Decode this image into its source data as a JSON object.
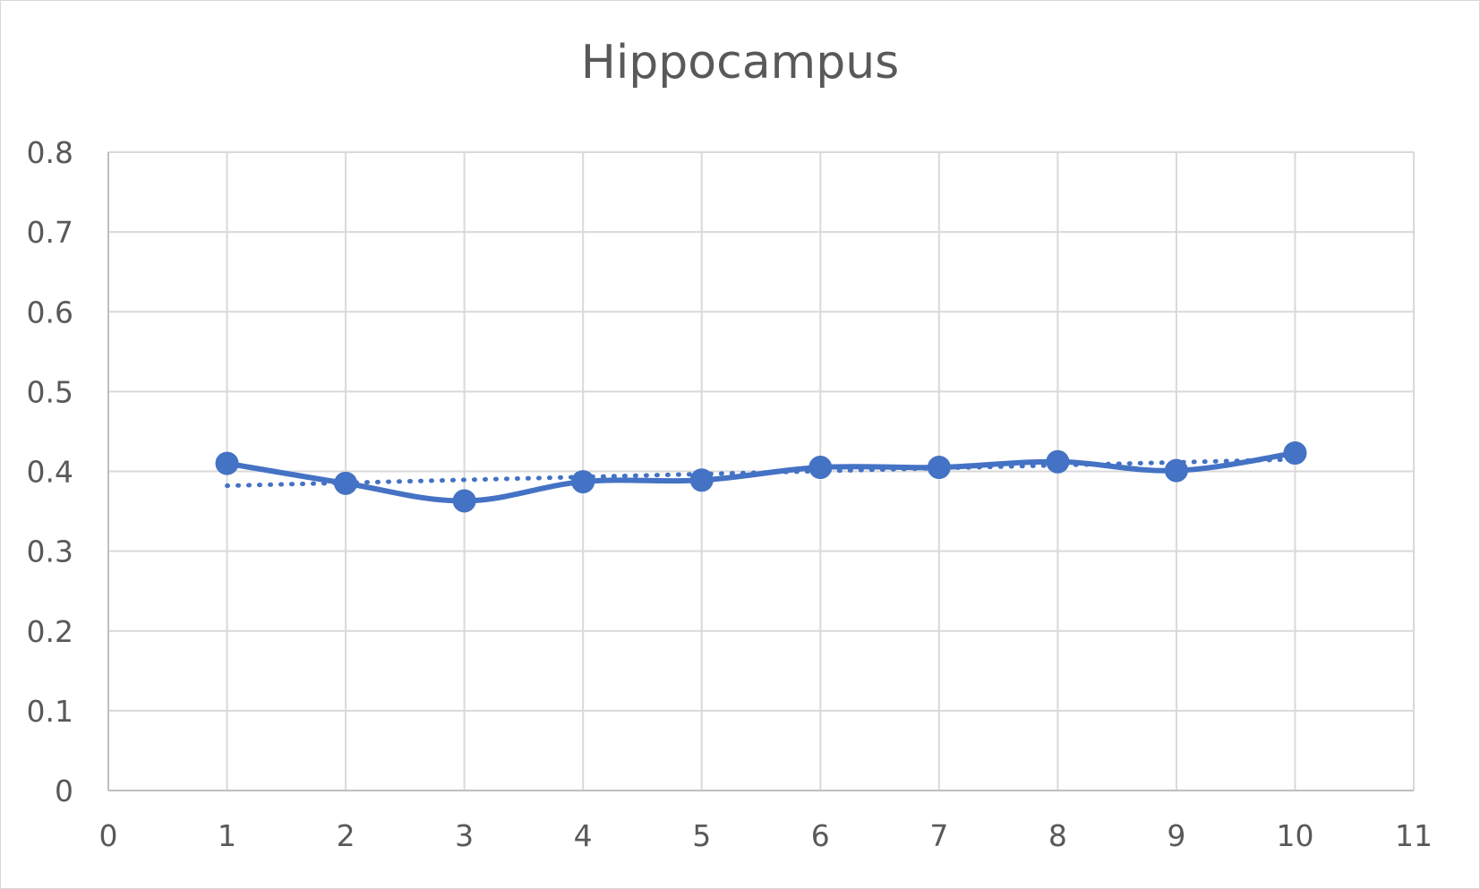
{
  "chart_data": {
    "type": "scatter",
    "title": "Hippocampus",
    "xlim": [
      0,
      11
    ],
    "ylim": [
      0,
      0.8
    ],
    "x_ticks": [
      "0",
      "1",
      "2",
      "3",
      "4",
      "5",
      "6",
      "7",
      "8",
      "9",
      "10",
      "11"
    ],
    "y_ticks": [
      "0",
      "0.1",
      "0.2",
      "0.3",
      "0.4",
      "0.5",
      "0.6",
      "0.7",
      "0.8"
    ],
    "grid": true,
    "legend": "none",
    "series": [
      {
        "style": "smooth-line-with-markers",
        "color": "#4472c4",
        "x": [
          1,
          2,
          3,
          4,
          5,
          6,
          7,
          8,
          9,
          10
        ],
        "y": [
          0.41,
          0.385,
          0.363,
          0.387,
          0.389,
          0.405,
          0.405,
          0.412,
          0.401,
          0.423
        ]
      }
    ],
    "trendline": {
      "type": "linear",
      "style": "dotted",
      "color": "#4472c4",
      "x": [
        1,
        10
      ],
      "y": [
        0.382,
        0.415
      ]
    }
  }
}
